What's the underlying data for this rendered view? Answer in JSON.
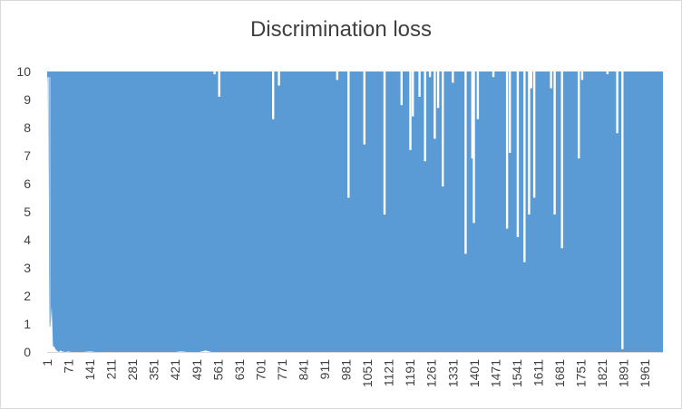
{
  "chart_data": {
    "type": "area",
    "title": "Discrimination loss",
    "xlabel": "",
    "ylabel": "",
    "ylim": [
      0,
      10
    ],
    "xlim": [
      1,
      2020
    ],
    "yticks": [
      "0",
      "1",
      "2",
      "3",
      "4",
      "5",
      "6",
      "7",
      "8",
      "9",
      "10"
    ],
    "xticks": [
      "1",
      "71",
      "141",
      "211",
      "281",
      "351",
      "421",
      "491",
      "561",
      "631",
      "701",
      "771",
      "841",
      "911",
      "981",
      "1051",
      "1121",
      "1191",
      "1261",
      "1331",
      "1401",
      "1471",
      "1541",
      "1611",
      "1681",
      "1751",
      "1821",
      "1891",
      "1961"
    ],
    "grid": false,
    "legend": "none",
    "color": "#5b9bd5",
    "series": [
      {
        "x": [
          1,
          3,
          5,
          8,
          12,
          16,
          20,
          24,
          28,
          32,
          36,
          40,
          44,
          50,
          60,
          70,
          80,
          100,
          120,
          140,
          160,
          180,
          200,
          220,
          240,
          260,
          280,
          300,
          320,
          340,
          360,
          380,
          400,
          420,
          440,
          460,
          480,
          500,
          520,
          540,
          560,
          580,
          600,
          620,
          640,
          660,
          680,
          700,
          720,
          740,
          760,
          780,
          800,
          820,
          840,
          860,
          880,
          900,
          920,
          940,
          960,
          980,
          1000,
          1020,
          1040,
          1060,
          1080,
          1100,
          1120,
          1140,
          1160,
          1180,
          1200,
          1220,
          1240,
          1260,
          1280,
          1300,
          1320,
          1340,
          1360,
          1380,
          1400,
          1420,
          1440,
          1460,
          1480,
          1500,
          1520,
          1540,
          1560,
          1580,
          1600,
          1620,
          1640,
          1660,
          1680,
          1700,
          1720,
          1740,
          1760,
          1780,
          1800,
          1820,
          1840,
          1860,
          1880,
          1900,
          1920,
          1940,
          1960,
          1980,
          2000,
          2010,
          2020
        ],
        "y": [
          9.7,
          9.6,
          6.3,
          0.9,
          0.9,
          1.6,
          0.2,
          0.2,
          0.1,
          0.05,
          0.02,
          0.0,
          0.05,
          0.02,
          0.0,
          0.02,
          0.0,
          0.0,
          0.0,
          0.02,
          0.0,
          0.0,
          0.0,
          0.0,
          0.0,
          0.0,
          0.0,
          0.0,
          0.0,
          0.0,
          0.0,
          0.0,
          0.0,
          0.0,
          0.02,
          0.0,
          0.0,
          0.0,
          0.05,
          0.0,
          0.0,
          0.0,
          0.0,
          0.0,
          0.0,
          0.0,
          0.0,
          0.0,
          0.0,
          0.0,
          0.0,
          0.0,
          0.0,
          0.0,
          0.0,
          0.0,
          0.0,
          0.0,
          0.0,
          0.0,
          0.0,
          0.0,
          0.0,
          0.0,
          0.0,
          0.0,
          0.0,
          0.0,
          0.0,
          0.0,
          0.0,
          0.0,
          0.0,
          0.0,
          0.0,
          0.0,
          0.0,
          0.0,
          0.0,
          0.0,
          0.0,
          0.0,
          0.0,
          0.0,
          0.0,
          0.0,
          0.0,
          0.0,
          0.0,
          0.0,
          0.0,
          0.0,
          0.0,
          0.0,
          0.0,
          0.0,
          0.0,
          0.0,
          0.0,
          0.0,
          0.0,
          0.0,
          0.0,
          0.0,
          0.0,
          0.0,
          0.0,
          0.0,
          0.0,
          0.0,
          0.0,
          0.0,
          0.0,
          0.0,
          0.0
        ],
        "upper": [
          10,
          10,
          10,
          10,
          10,
          10,
          10,
          10,
          10,
          10,
          10,
          10,
          10,
          10,
          10,
          10,
          10,
          10,
          10,
          10,
          10,
          10,
          10,
          10,
          10,
          10,
          10,
          10,
          10,
          10,
          10,
          10,
          10,
          10,
          10,
          10,
          10,
          10,
          10,
          10,
          10,
          10,
          10,
          10,
          10,
          10,
          10,
          10,
          10,
          10,
          10,
          10,
          10,
          10,
          10,
          10,
          10,
          10,
          10,
          10,
          10,
          10,
          10,
          10,
          10,
          10,
          10,
          10,
          10,
          10,
          10,
          10,
          10,
          10,
          10,
          10,
          10,
          10,
          10,
          10,
          10,
          10,
          10,
          10,
          10,
          10,
          10,
          10,
          10,
          10,
          10,
          10,
          10,
          10,
          10,
          10,
          10,
          10,
          10,
          10,
          10,
          10,
          10,
          10,
          10,
          10,
          10,
          10,
          10,
          10,
          10,
          10,
          10,
          10,
          10
        ]
      }
    ],
    "gaps": [
      {
        "x": 550,
        "y": 9.9
      },
      {
        "x": 565,
        "y": 9.1
      },
      {
        "x": 742,
        "y": 8.3
      },
      {
        "x": 761,
        "y": 9.5
      },
      {
        "x": 952,
        "y": 9.7
      },
      {
        "x": 989,
        "y": 5.5
      },
      {
        "x": 1041,
        "y": 7.4
      },
      {
        "x": 1107,
        "y": 4.9
      },
      {
        "x": 1163,
        "y": 8.8
      },
      {
        "x": 1192,
        "y": 7.2
      },
      {
        "x": 1200,
        "y": 8.4
      },
      {
        "x": 1222,
        "y": 9.1
      },
      {
        "x": 1240,
        "y": 6.8
      },
      {
        "x": 1256,
        "y": 9.8
      },
      {
        "x": 1272,
        "y": 7.6
      },
      {
        "x": 1283,
        "y": 8.7
      },
      {
        "x": 1298,
        "y": 5.9
      },
      {
        "x": 1331,
        "y": 9.6
      },
      {
        "x": 1373,
        "y": 3.5
      },
      {
        "x": 1395,
        "y": 6.9
      },
      {
        "x": 1400,
        "y": 4.6
      },
      {
        "x": 1413,
        "y": 8.3
      },
      {
        "x": 1464,
        "y": 9.8
      },
      {
        "x": 1509,
        "y": 4.4
      },
      {
        "x": 1518,
        "y": 7.1
      },
      {
        "x": 1544,
        "y": 4.1
      },
      {
        "x": 1566,
        "y": 3.2
      },
      {
        "x": 1581,
        "y": 4.9
      },
      {
        "x": 1588,
        "y": 9.4
      },
      {
        "x": 1598,
        "y": 5.5
      },
      {
        "x": 1653,
        "y": 9.4
      },
      {
        "x": 1665,
        "y": 4.9
      },
      {
        "x": 1689,
        "y": 3.7
      },
      {
        "x": 1744,
        "y": 6.9
      },
      {
        "x": 1755,
        "y": 9.7
      },
      {
        "x": 1838,
        "y": 9.9
      },
      {
        "x": 1870,
        "y": 7.8
      },
      {
        "x": 1887,
        "y": 0.1
      }
    ]
  }
}
